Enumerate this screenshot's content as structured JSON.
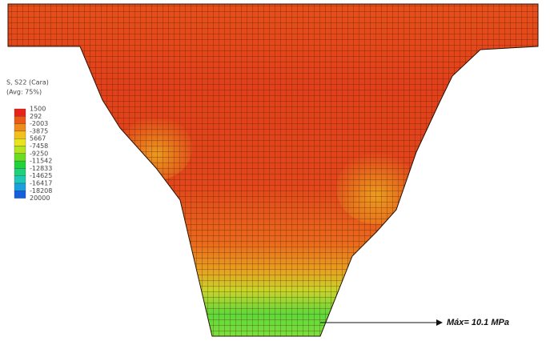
{
  "legend": {
    "title": "S, S22 (Cara)",
    "subtitle": "(Avg: 75%)",
    "labels": [
      "1500",
      "292",
      "-2003",
      "-3875",
      "5667",
      "-7458",
      "-9250",
      "-11542",
      "-12833",
      "-14625",
      "-16417",
      "-18208",
      "20000"
    ],
    "colors": [
      "#e8231a",
      "#ec5a18",
      "#f08c1a",
      "#f4c01e",
      "#e8e41e",
      "#b4e41e",
      "#6cdc22",
      "#22d23a",
      "#1ed27a",
      "#1ec8b8",
      "#1aa0dc",
      "#1660e0",
      "#1a22c8"
    ]
  },
  "annotation": "Máx= 10.1 MPa"
}
